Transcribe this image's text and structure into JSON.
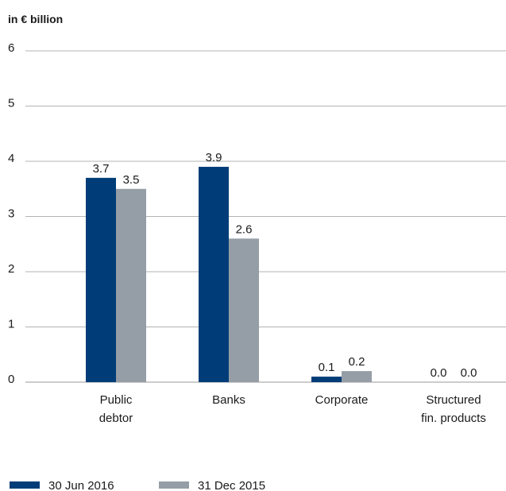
{
  "chart_data": {
    "type": "bar",
    "unit_label": "in € billion",
    "categories": [
      [
        "Public",
        "debtor"
      ],
      [
        "Banks"
      ],
      [
        "Corporate"
      ],
      [
        "Structured",
        "fin. products"
      ]
    ],
    "series": [
      {
        "name": "30 Jun 2016",
        "color": "#003d78",
        "values": [
          3.7,
          3.9,
          0.1,
          0.0
        ],
        "labels": [
          "3.7",
          "3.9",
          "0.1",
          "0.0"
        ]
      },
      {
        "name": "31 Dec 2015",
        "color": "#959ea6",
        "values": [
          3.5,
          2.6,
          0.2,
          0.0
        ],
        "labels": [
          "3.5",
          "2.6",
          "0.2",
          "0.0"
        ]
      }
    ],
    "ylim": [
      0,
      6
    ],
    "yticks": [
      "0",
      "1",
      "2",
      "3",
      "4",
      "5",
      "6"
    ],
    "grid": true,
    "legend_position": "bottom-left"
  }
}
